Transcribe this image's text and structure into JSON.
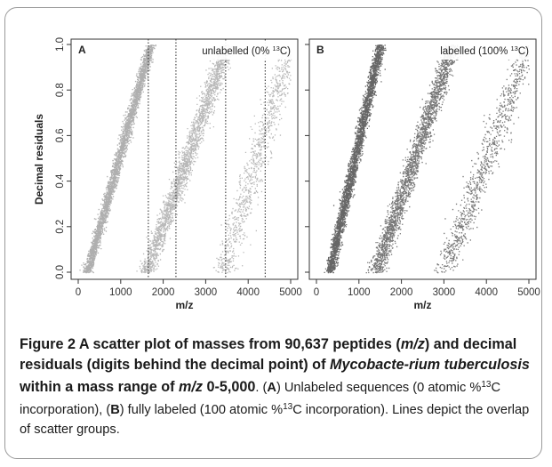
{
  "chart_data": [
    {
      "type": "scatter",
      "panel_label": "A",
      "legend_text": "unlabelled (0% ",
      "legend_sup": "13",
      "legend_tail": "C)",
      "xlabel": "m/z",
      "ylabel": "Decimal residuals",
      "xlim": [
        0,
        5000
      ],
      "ylim": [
        0,
        1.0
      ],
      "xticks": [
        0,
        1000,
        2000,
        3000,
        4000,
        5000
      ],
      "yticks": [
        "0.0",
        "0.2",
        "0.4",
        "0.6",
        "0.8",
        "1.0"
      ],
      "color": "#a6a6a6",
      "vlines": [
        1650,
        2300,
        3470,
        4400
      ],
      "bands": [
        {
          "x_at_0": 200,
          "x_at_1": 1700,
          "density": 1.0
        },
        {
          "x_at_0": 1600,
          "x_at_1": 3500,
          "density": 0.75
        },
        {
          "x_at_0": 3400,
          "x_at_1": 5000,
          "density": 0.3
        }
      ]
    },
    {
      "type": "scatter",
      "panel_label": "B",
      "legend_text": "labelled (100% ",
      "legend_sup": "13",
      "legend_tail": "C)",
      "xlabel": "m/z",
      "ylabel": "",
      "xlim": [
        0,
        5000
      ],
      "ylim": [
        0,
        1.0
      ],
      "xticks": [
        0,
        1000,
        2000,
        3000,
        4000,
        5000
      ],
      "yticks": [
        "0.0",
        "0.2",
        "0.4",
        "0.6",
        "0.8",
        "1.0"
      ],
      "color": "#555555",
      "vlines": [],
      "bands": [
        {
          "x_at_0": 300,
          "x_at_1": 1500,
          "density": 1.0
        },
        {
          "x_at_0": 1400,
          "x_at_1": 3200,
          "density": 0.75
        },
        {
          "x_at_0": 3000,
          "x_at_1": 5000,
          "density": 0.3
        }
      ]
    }
  ],
  "caption": {
    "title": "Figure 2 A scatter plot of masses from 90,637 peptides (m/z) and decimal residuals (digits behind the decimal point) of Mycobacterium tuberculosis within a mass range of m/z 0-5,000",
    "line1": "Figure 2",
    "line2": "A scatter plot of masses from 90,637 peptides (",
    "line3": "m/z",
    "line4": ") and",
    "line5": "decimal residuals (digits behind the decimal point) of ",
    "line6": "Mycobacte-",
    "line7": "rium tuberculosis",
    "line8": " within a mass range of ",
    "line9": "m/z",
    "line10": " 0-5,000",
    "body1": ". (",
    "bodyA": "A",
    "body2": ") Unlabeled sequences (0 atomic %",
    "sup1": "13",
    "body3": "C incorporation), (",
    "bodyB": "B",
    "body4": ") fully labeled (100 atomic %",
    "sup2": "13",
    "body5": "C incorporation). Lines depict the overlap of scatter groups."
  }
}
